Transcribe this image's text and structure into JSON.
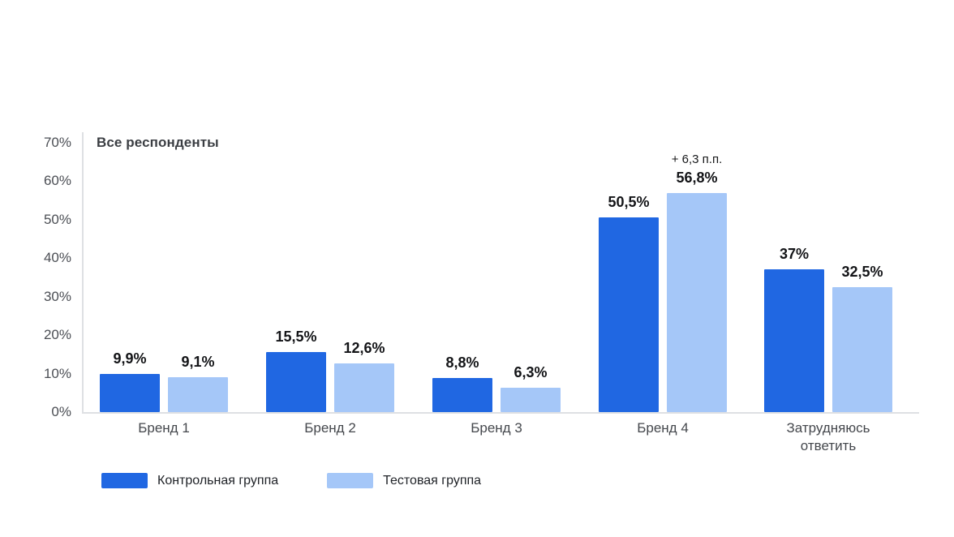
{
  "chart_data": {
    "type": "bar",
    "title": "Все респонденты",
    "categories": [
      "Бренд 1",
      "Бренд 2",
      "Бренд 3",
      "Бренд 4",
      "Затрудняюсь ответить"
    ],
    "series": [
      {
        "name": "Контрольная группа",
        "color": "#2067E2",
        "values": [
          9.9,
          15.5,
          8.8,
          50.5,
          37
        ],
        "labels": [
          "9,9%",
          "15,5%",
          "8,8%",
          "50,5%",
          "37%"
        ]
      },
      {
        "name": "Тестовая группа",
        "color": "#A5C7F8",
        "values": [
          9.1,
          12.6,
          6.3,
          56.8,
          32.5
        ],
        "labels": [
          "9,1%",
          "12,6%",
          "6,3%",
          "56,8%",
          "32,5%"
        ]
      }
    ],
    "annotation": {
      "text": "+ 6,3 п.п.",
      "category_index": 3,
      "series_index": 1
    },
    "xlabel": "",
    "ylabel": "",
    "ylim": [
      0,
      70
    ],
    "yticks": [
      "0%",
      "10%",
      "20%",
      "30%",
      "40%",
      "50%",
      "60%",
      "70%"
    ],
    "grid": false,
    "legend_position": "bottom"
  }
}
